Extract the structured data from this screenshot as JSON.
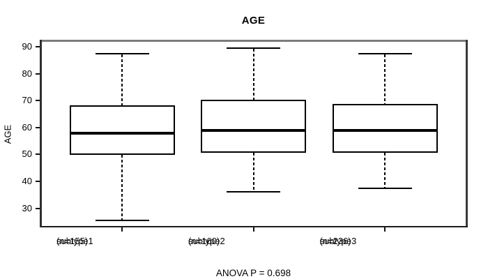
{
  "chart_data": {
    "type": "boxplot",
    "title": "AGE",
    "ylabel": "AGE",
    "xlabel": "",
    "annotation": "ANOVA P = 0.698",
    "ylim": [
      23.4,
      92.4
    ],
    "yticks": [
      30,
      40,
      50,
      60,
      70,
      80,
      90
    ],
    "grid": false,
    "colors": {
      "line": "#000000",
      "background": "#ffffff",
      "frame_top": "#7c7c7c"
    },
    "groups": [
      {
        "label": "subtype1",
        "sublabel": "(n=155)",
        "n": 155,
        "whisker_low": 25.5,
        "q1": 50,
        "median": 58,
        "q3": 68,
        "whisker_high": 87.5
      },
      {
        "label": "subtype2",
        "sublabel": "(n=160)",
        "n": 160,
        "whisker_low": 36,
        "q1": 51,
        "median": 59,
        "q3": 70,
        "whisker_high": 89.5
      },
      {
        "label": "subtype3",
        "sublabel": "(n=236)",
        "n": 236,
        "whisker_low": 37.5,
        "q1": 51,
        "median": 59,
        "q3": 68.5,
        "whisker_high": 87.5
      }
    ]
  }
}
